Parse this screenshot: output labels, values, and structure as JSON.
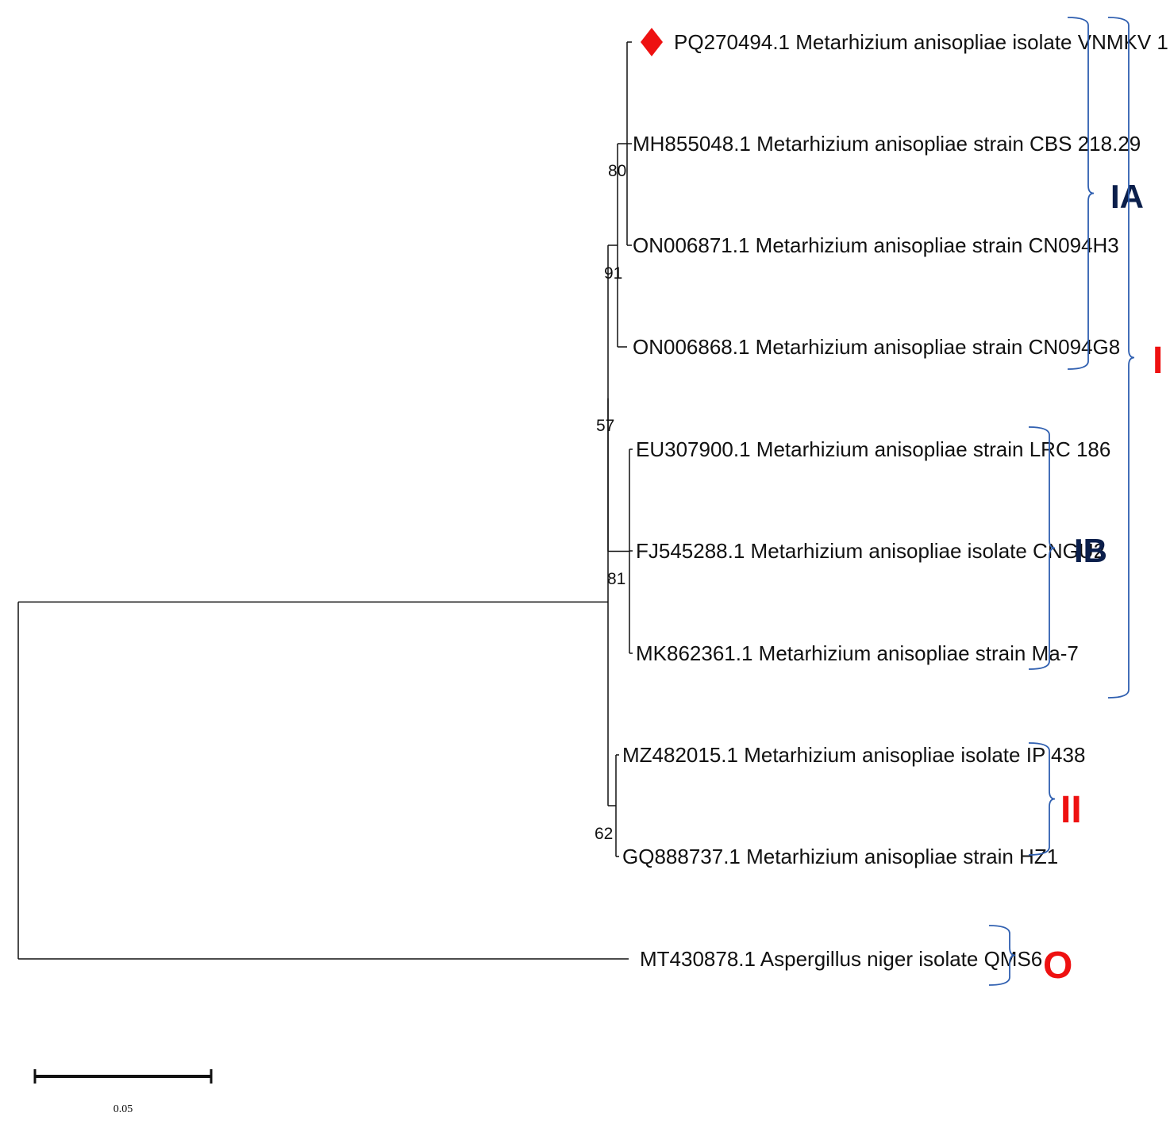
{
  "colors": {
    "branch": "#111111",
    "bracket": "#2f5fb0",
    "clade_dark": "#0b1f4b",
    "clade_red": "#ee1111",
    "marker": "#ee1111"
  },
  "leaves": [
    {
      "id": "PQ270494",
      "label": "PQ270494.1 Metarhizium anisopliae isolate VNMKV 1",
      "marker": "red-diamond"
    },
    {
      "id": "MH855048",
      "label": "MH855048.1 Metarhizium anisopliae strain CBS 218.29"
    },
    {
      "id": "ON006871",
      "label": "ON006871.1 Metarhizium anisopliae strain CN094H3"
    },
    {
      "id": "ON006868",
      "label": "ON006868.1 Metarhizium anisopliae strain CN094G8"
    },
    {
      "id": "EU307900",
      "label": "EU307900.1 Metarhizium anisopliae strain LRC 186"
    },
    {
      "id": "FJ545288",
      "label": "FJ545288.1 Metarhizium anisopliae isolate CNGU2"
    },
    {
      "id": "MK862361",
      "label": "MK862361.1 Metarhizium anisopliae strain Ma-7"
    },
    {
      "id": "MZ482015",
      "label": "MZ482015.1 Metarhizium anisopliae isolate IP 438"
    },
    {
      "id": "GQ888737",
      "label": "GQ888737.1 Metarhizium anisopliae strain HZ1"
    },
    {
      "id": "MT430878",
      "label": "MT430878.1 Aspergillus niger isolate QMS6"
    }
  ],
  "bootstrap": [
    {
      "node": "n80",
      "value": "80"
    },
    {
      "node": "n91",
      "value": "91"
    },
    {
      "node": "n57",
      "value": "57"
    },
    {
      "node": "n81",
      "value": "81"
    },
    {
      "node": "n62",
      "value": "62"
    }
  ],
  "clades": [
    {
      "id": "IA",
      "label": "IA",
      "style": "dark"
    },
    {
      "id": "IB",
      "label": "IB",
      "style": "dark"
    },
    {
      "id": "I",
      "label": "I",
      "style": "red"
    },
    {
      "id": "II",
      "label": "II",
      "style": "red"
    },
    {
      "id": "O",
      "label": "O",
      "style": "red"
    }
  ],
  "scale_bar": {
    "value": 0.05,
    "label": "0.05"
  }
}
